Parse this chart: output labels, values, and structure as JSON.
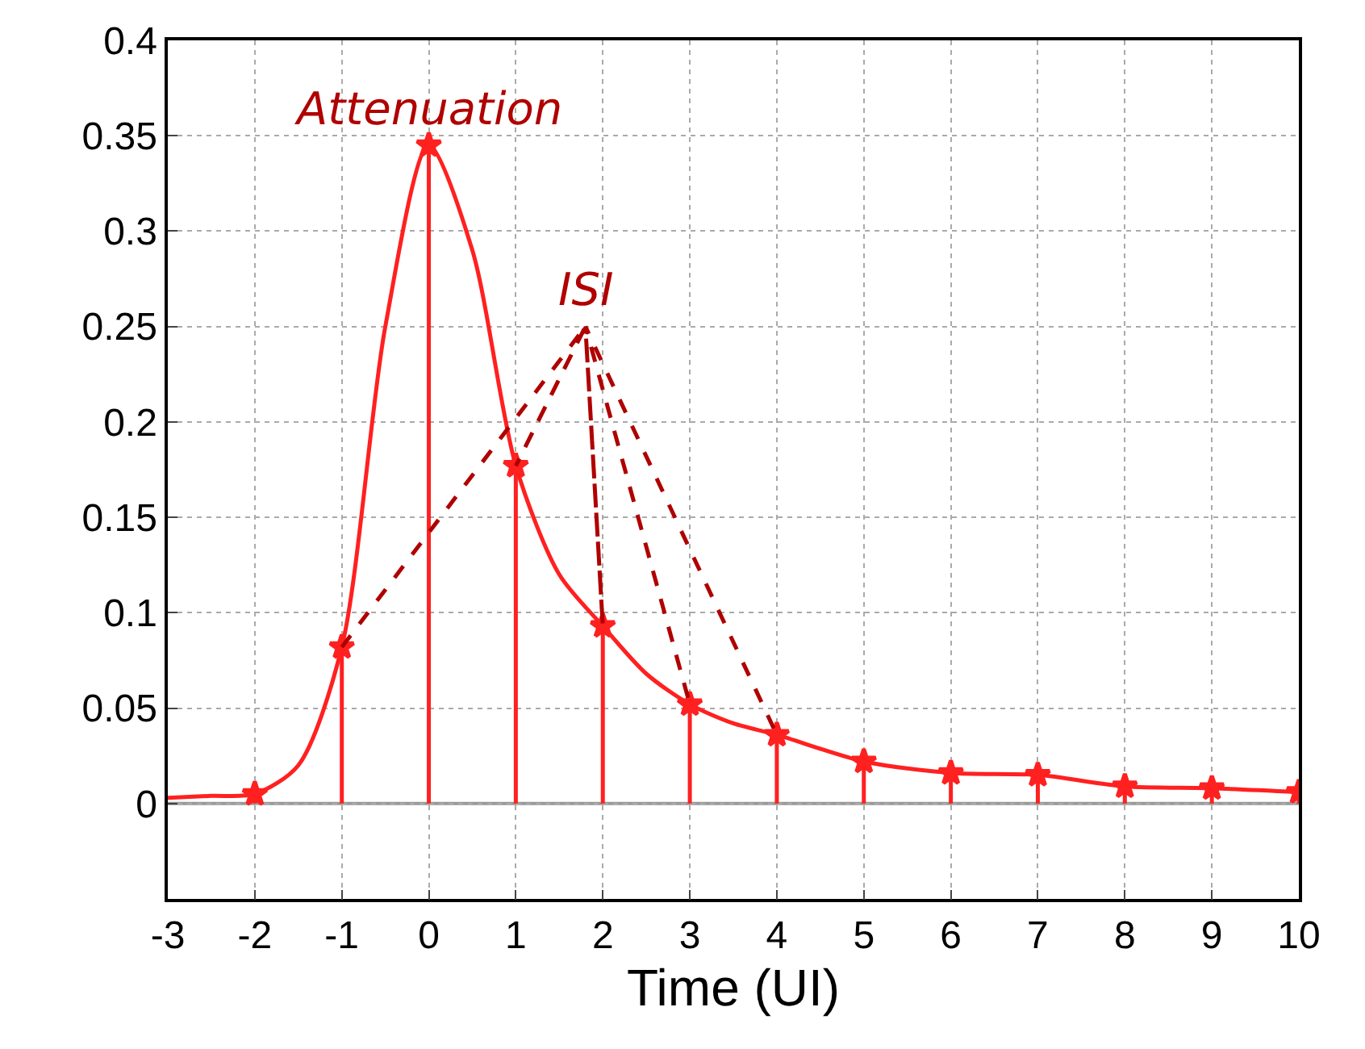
{
  "chart_data": {
    "type": "line",
    "xlabel": "Time (UI)",
    "xlim": [
      -3,
      10
    ],
    "xticks": [
      -3,
      -2,
      -1,
      0,
      1,
      2,
      3,
      4,
      5,
      6,
      7,
      8,
      9,
      10
    ],
    "ylim": [
      -0.05,
      0.4
    ],
    "yticks": [
      {
        "value": -0.05,
        "label": null
      },
      0,
      0.05,
      0.1,
      0.15,
      0.2,
      0.25,
      0.3,
      0.35,
      0.4
    ],
    "grid": true,
    "ref_lines": [
      {
        "axis": "y",
        "value": 0,
        "color": "#999999"
      }
    ],
    "series": [
      {
        "color": "#ff2020",
        "marker": "none",
        "x": [
          -3,
          -2.5,
          -2,
          -1.5,
          -1,
          -0.5,
          0,
          0.5,
          1,
          1.5,
          2,
          2.5,
          3,
          3.5,
          4,
          5,
          6,
          7,
          8,
          9,
          10
        ],
        "values": [
          0.003,
          0.004,
          0.005,
          0.02,
          0.082,
          0.25,
          0.345,
          0.29,
          0.177,
          0.12,
          0.093,
          0.068,
          0.052,
          0.042,
          0.036,
          0.022,
          0.016,
          0.015,
          0.009,
          0.008,
          0.006
        ]
      },
      {
        "type": "lollipop",
        "color": "#ff2020",
        "marker": "star",
        "x": [
          -2,
          -1,
          0,
          1,
          2,
          3,
          4,
          5,
          6,
          7,
          8,
          9,
          10
        ],
        "values": [
          0.005,
          0.082,
          0.345,
          0.177,
          0.093,
          0.052,
          0.036,
          0.022,
          0.016,
          0.015,
          0.009,
          0.008,
          0.006
        ]
      },
      {
        "color": "#b00000",
        "marker": "none",
        "line_style": "dashed",
        "x": [
          -1,
          1.8,
          1,
          1.8,
          2,
          1.8,
          3,
          1.8,
          4
        ],
        "values": [
          0.082,
          0.25,
          0.177,
          0.25,
          0.093,
          0.25,
          0.052,
          0.25,
          0.036
        ]
      }
    ],
    "annotations": [
      {
        "text": "Attenuation",
        "x": 0,
        "y": 0.345
      },
      {
        "text": "ISI",
        "x": 1.8,
        "y": 0.25
      }
    ]
  }
}
